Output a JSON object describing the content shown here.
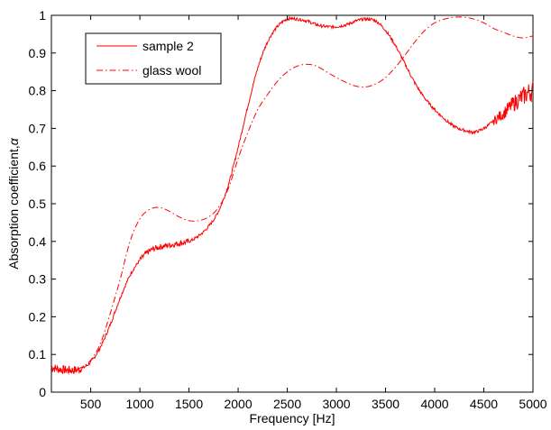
{
  "colors": {
    "series": "#ff0000",
    "axis": "#000000",
    "background": "#ffffff"
  },
  "chart_data": {
    "type": "line",
    "title": "",
    "xlabel": "Frequency [Hz]",
    "ylabel": "Absorption coefficient,",
    "ylabel_symbol": "α",
    "xlim": [
      100,
      5000
    ],
    "ylim": [
      0,
      1
    ],
    "xticks": [
      500,
      1000,
      1500,
      2000,
      2500,
      3000,
      3500,
      4000,
      4500,
      5000
    ],
    "yticks": [
      0,
      0.1,
      0.2,
      0.3,
      0.4,
      0.5,
      0.6,
      0.7,
      0.8,
      0.9,
      1
    ],
    "grid": false,
    "legend_position": "top-left",
    "series": [
      {
        "name": "sample 2",
        "line_style": "solid",
        "noisy": true,
        "x": [
          100,
          200,
          300,
          400,
          500,
          600,
          700,
          800,
          900,
          1000,
          1100,
          1200,
          1300,
          1400,
          1500,
          1600,
          1700,
          1800,
          1900,
          2000,
          2100,
          2200,
          2300,
          2400,
          2500,
          2600,
          2700,
          2800,
          2900,
          3000,
          3100,
          3200,
          3300,
          3400,
          3500,
          3600,
          3700,
          3800,
          3900,
          4000,
          4100,
          4200,
          4300,
          4400,
          4500,
          4600,
          4700,
          4800,
          4900,
          5000
        ],
        "values": [
          0.065,
          0.06,
          0.058,
          0.062,
          0.08,
          0.12,
          0.18,
          0.25,
          0.31,
          0.35,
          0.375,
          0.385,
          0.39,
          0.395,
          0.4,
          0.415,
          0.44,
          0.48,
          0.55,
          0.65,
          0.76,
          0.86,
          0.93,
          0.97,
          0.99,
          0.99,
          0.985,
          0.975,
          0.97,
          0.97,
          0.975,
          0.985,
          0.99,
          0.985,
          0.96,
          0.92,
          0.87,
          0.82,
          0.78,
          0.75,
          0.725,
          0.705,
          0.695,
          0.69,
          0.7,
          0.72,
          0.74,
          0.765,
          0.785,
          0.8
        ]
      },
      {
        "name": "glass wool",
        "line_style": "dashdot",
        "noisy": false,
        "x": [
          100,
          200,
          300,
          400,
          500,
          600,
          700,
          800,
          900,
          1000,
          1100,
          1200,
          1300,
          1400,
          1500,
          1600,
          1700,
          1800,
          1900,
          2000,
          2100,
          2200,
          2300,
          2400,
          2500,
          2600,
          2700,
          2800,
          2900,
          3000,
          3100,
          3200,
          3300,
          3400,
          3500,
          3600,
          3700,
          3800,
          3900,
          4000,
          4100,
          4200,
          4300,
          4400,
          4500,
          4600,
          4700,
          4800,
          4900,
          5000
        ],
        "values": [
          0.065,
          0.06,
          0.06,
          0.065,
          0.085,
          0.13,
          0.21,
          0.3,
          0.4,
          0.46,
          0.485,
          0.49,
          0.48,
          0.465,
          0.455,
          0.455,
          0.465,
          0.49,
          0.54,
          0.62,
          0.69,
          0.75,
          0.79,
          0.825,
          0.85,
          0.865,
          0.87,
          0.865,
          0.85,
          0.835,
          0.822,
          0.812,
          0.81,
          0.818,
          0.835,
          0.862,
          0.895,
          0.93,
          0.96,
          0.98,
          0.99,
          0.995,
          0.995,
          0.99,
          0.98,
          0.965,
          0.955,
          0.945,
          0.94,
          0.945
        ]
      }
    ]
  }
}
